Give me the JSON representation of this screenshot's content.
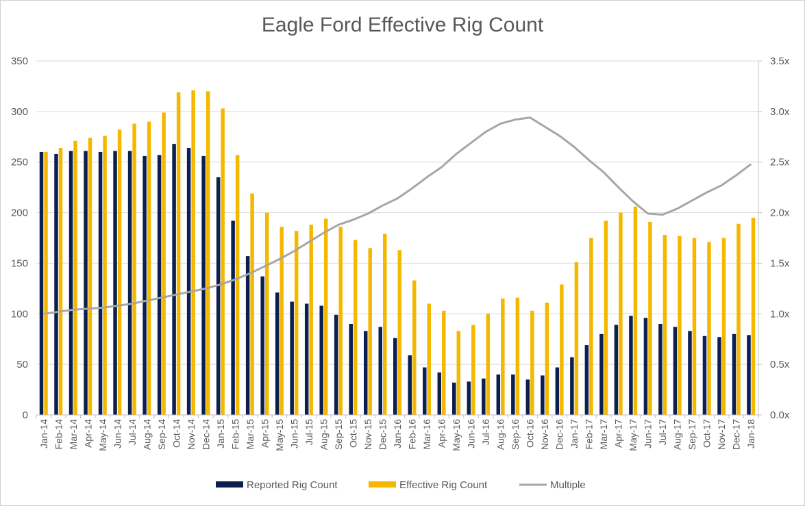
{
  "chart_data": {
    "type": "bar",
    "title": "Eagle Ford Effective Rig Count",
    "categories": [
      "Jan-14",
      "Feb-14",
      "Mar-14",
      "Apr-14",
      "May-14",
      "Jun-14",
      "Jul-14",
      "Aug-14",
      "Sep-14",
      "Oct-14",
      "Nov-14",
      "Dec-14",
      "Jan-15",
      "Feb-15",
      "Mar-15",
      "Apr-15",
      "May-15",
      "Jun-15",
      "Jul-15",
      "Aug-15",
      "Sep-15",
      "Oct-15",
      "Nov-15",
      "Dec-15",
      "Jan-16",
      "Feb-16",
      "Mar-16",
      "Apr-16",
      "May-16",
      "Jun-16",
      "Jul-16",
      "Aug-16",
      "Sep-16",
      "Oct-16",
      "Nov-16",
      "Dec-16",
      "Jan-17",
      "Feb-17",
      "Mar-17",
      "Apr-17",
      "May-17",
      "Jun-17",
      "Jul-17",
      "Aug-17",
      "Sep-17",
      "Oct-17",
      "Nov-17",
      "Dec-17",
      "Jan-18"
    ],
    "series": [
      {
        "name": "Reported Rig Count",
        "type": "bar",
        "color": "#0b1f51",
        "axis": "left",
        "values": [
          260,
          258,
          261,
          261,
          260,
          261,
          261,
          256,
          257,
          268,
          264,
          256,
          235,
          192,
          157,
          137,
          121,
          112,
          110,
          108,
          99,
          90,
          83,
          87,
          76,
          59,
          47,
          42,
          32,
          33,
          36,
          40,
          40,
          35,
          39,
          47,
          57,
          69,
          80,
          89,
          98,
          96,
          90,
          87,
          83,
          78,
          77,
          80,
          79
        ]
      },
      {
        "name": "Effective Rig Count",
        "type": "bar",
        "color": "#f5b800",
        "axis": "left",
        "values": [
          260,
          264,
          271,
          274,
          276,
          282,
          288,
          290,
          299,
          319,
          321,
          320,
          303,
          257,
          219,
          200,
          186,
          182,
          188,
          194,
          186,
          173,
          165,
          179,
          163,
          133,
          110,
          103,
          83,
          89,
          100,
          115,
          116,
          103,
          111,
          129,
          151,
          175,
          192,
          200,
          206,
          191,
          178,
          177,
          175,
          171,
          175,
          189,
          195
        ]
      },
      {
        "name": "Multiple",
        "type": "line",
        "color": "#a6a6a6",
        "axis": "right",
        "values": [
          1.0,
          1.02,
          1.04,
          1.05,
          1.06,
          1.08,
          1.1,
          1.13,
          1.16,
          1.19,
          1.22,
          1.25,
          1.29,
          1.34,
          1.4,
          1.47,
          1.54,
          1.62,
          1.71,
          1.8,
          1.88,
          1.93,
          1.99,
          2.07,
          2.14,
          2.24,
          2.35,
          2.45,
          2.58,
          2.69,
          2.8,
          2.88,
          2.92,
          2.94,
          2.85,
          2.76,
          2.65,
          2.52,
          2.4,
          2.25,
          2.11,
          1.99,
          1.98,
          2.04,
          2.12,
          2.2,
          2.27,
          2.37,
          2.48
        ]
      }
    ],
    "y_left": {
      "ylim": [
        0,
        350
      ],
      "ticks": [
        0,
        50,
        100,
        150,
        200,
        250,
        300,
        350
      ]
    },
    "y_right": {
      "ylim": [
        0,
        3.5
      ],
      "ticks": [
        "0.0x",
        "0.5x",
        "1.0x",
        "1.5x",
        "2.0x",
        "2.5x",
        "3.0x",
        "3.5x"
      ]
    },
    "grid": true,
    "legend_position": "bottom"
  }
}
